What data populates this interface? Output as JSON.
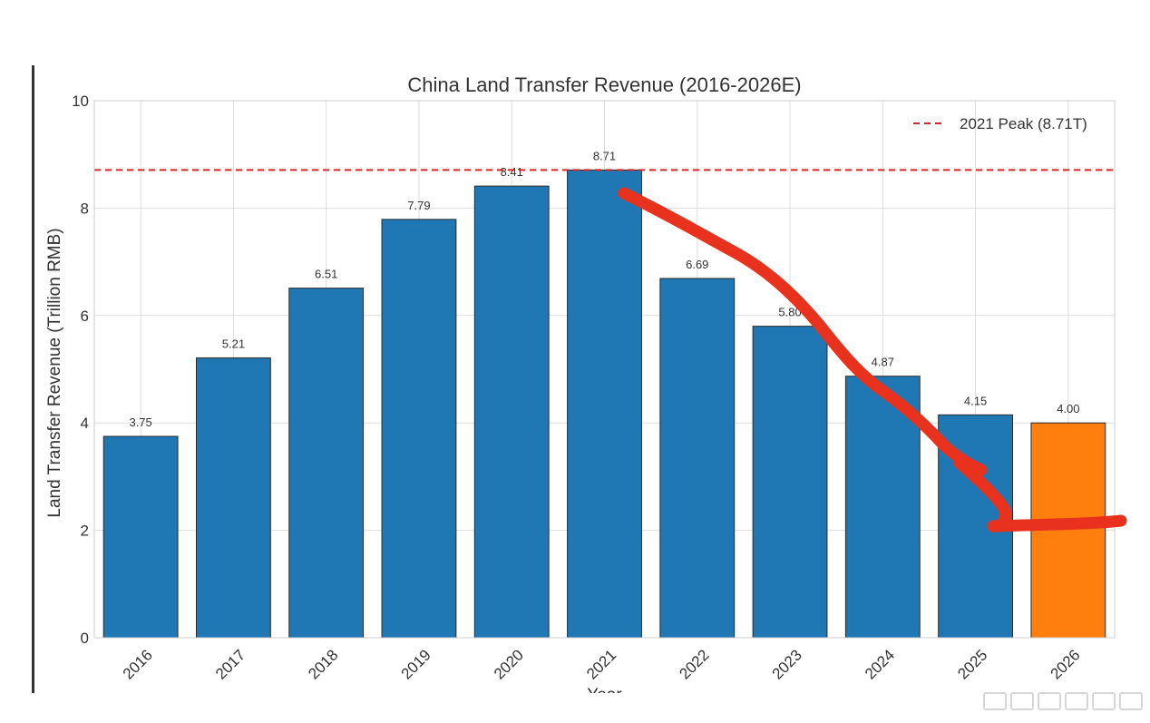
{
  "chart_data": {
    "type": "bar",
    "title": "China Land Transfer Revenue (2016-2026E)",
    "xlabel": "Year",
    "ylabel": "Land Transfer Revenue (Trillion RMB)",
    "categories": [
      "2016",
      "2017",
      "2018",
      "2019",
      "2020",
      "2021",
      "2022",
      "2023",
      "2024",
      "2025",
      "2026"
    ],
    "values": [
      3.75,
      5.21,
      6.51,
      7.79,
      8.41,
      8.71,
      6.69,
      5.8,
      4.87,
      4.15,
      4.0
    ],
    "data_labels": [
      "3.75",
      "5.21",
      "6.51",
      "7.79",
      "8.41",
      "8.71",
      "6.69",
      "5.80",
      "4.87",
      "4.15",
      "4.00"
    ],
    "bar_colors": [
      "#1f77b4",
      "#1f77b4",
      "#1f77b4",
      "#1f77b4",
      "#1f77b4",
      "#1f77b4",
      "#1f77b4",
      "#1f77b4",
      "#1f77b4",
      "#1f77b4",
      "#ff7f0e"
    ],
    "ylim": [
      0,
      10
    ],
    "yticks": [
      0,
      2,
      4,
      6,
      8,
      10
    ],
    "ytick_labels": [
      "0",
      "2",
      "4",
      "6",
      "8",
      "10"
    ],
    "grid": true,
    "reference_line": {
      "value": 8.71,
      "label": "2021 Peak (8.71T)",
      "style": "dashed",
      "color": "#d62728"
    },
    "legend_placement": "top-right",
    "annotation_stroke": {
      "description": "hand-drawn red marker line overlaid on chart",
      "color": "#e8321e"
    }
  }
}
